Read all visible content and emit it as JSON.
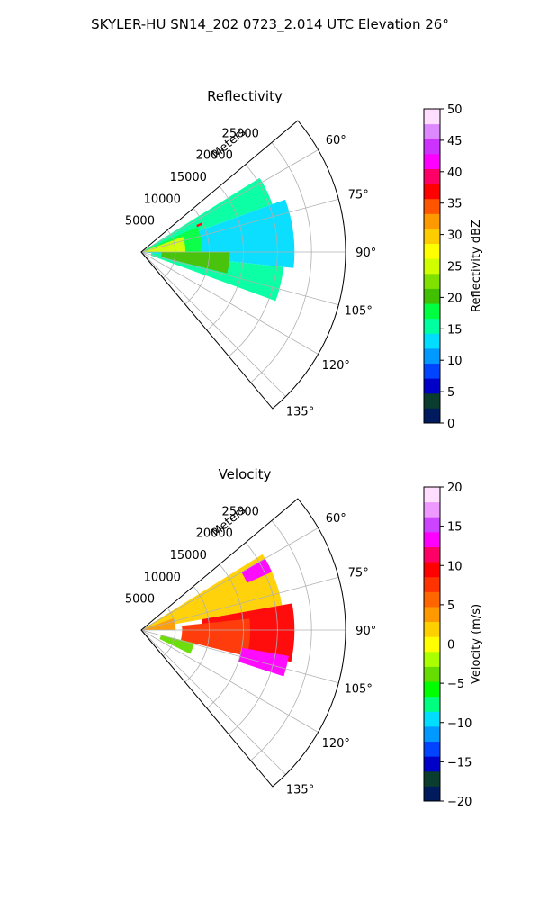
{
  "figure": {
    "title": "SKYLER-HU  SN14_202  0723_2.014 UTC Elevation 26°"
  },
  "colors": {
    "grid": "#b0b0b0",
    "axes": "#000000",
    "background": "#ffffff"
  },
  "chart_data": [
    {
      "type": "polar-sector",
      "title": "Reflectivity",
      "radial_label": "Meters",
      "radial_ticks": [
        5000,
        10000,
        15000,
        20000,
        25000
      ],
      "radial_range": [
        0,
        30000
      ],
      "angle_ticks": [
        "60°",
        "75°",
        "90°",
        "105°",
        "120°",
        "135°"
      ],
      "angle_values": [
        60,
        75,
        90,
        105,
        120,
        135
      ],
      "angle_range": [
        50,
        140
      ],
      "grid": true,
      "colorbar": {
        "label": "Reflectivity dBZ",
        "range": [
          0,
          50
        ],
        "ticks": [
          "0",
          "5",
          "10",
          "15",
          "20",
          "25",
          "30",
          "35",
          "40",
          "45",
          "50"
        ],
        "tick_values": [
          0,
          5,
          10,
          15,
          20,
          25,
          30,
          35,
          40,
          45,
          50
        ],
        "stops": [
          "#001a5e",
          "#0a3d2e",
          "#0000c8",
          "#0044ff",
          "#0099ff",
          "#00ddff",
          "#00ffa0",
          "#00ff40",
          "#40c000",
          "#80e000",
          "#d0ff00",
          "#ffff00",
          "#ffcc00",
          "#ff9900",
          "#ff5500",
          "#ff0000",
          "#ff0066",
          "#ff00ff",
          "#cc33ff",
          "#dd88ff",
          "#ffddff"
        ]
      },
      "echo_regions": [
        {
          "value": 16,
          "r": [
            0,
            20500
          ],
          "theta": [
            58,
            70
          ]
        },
        {
          "value": 14,
          "r": [
            0,
            22500
          ],
          "theta": [
            70,
            96
          ]
        },
        {
          "value": 15,
          "r": [
            1500,
            21000
          ],
          "theta": [
            96,
            110
          ]
        },
        {
          "value": 17,
          "r": [
            0,
            9000
          ],
          "theta": [
            66,
            92
          ]
        },
        {
          "value": 24,
          "r": [
            0,
            6500
          ],
          "theta": [
            70,
            90
          ]
        },
        {
          "value": 20,
          "r": [
            3000,
            13000
          ],
          "theta": [
            90,
            104
          ]
        },
        {
          "value": 37,
          "r": [
            9000,
            9800
          ],
          "theta": [
            64,
            66
          ]
        }
      ]
    },
    {
      "type": "polar-sector",
      "title": "Velocity",
      "radial_label": "Meters",
      "radial_ticks": [
        5000,
        10000,
        15000,
        20000,
        25000
      ],
      "radial_range": [
        0,
        30000
      ],
      "angle_ticks": [
        "60°",
        "75°",
        "90°",
        "105°",
        "120°",
        "135°"
      ],
      "angle_values": [
        60,
        75,
        90,
        105,
        120,
        135
      ],
      "angle_range": [
        50,
        140
      ],
      "grid": true,
      "colorbar": {
        "label": "Velocity (m/s)",
        "range": [
          -20,
          20
        ],
        "ticks": [
          "−20",
          "−15",
          "−10",
          "−5",
          "0",
          "5",
          "10",
          "15",
          "20"
        ],
        "tick_values": [
          -20,
          -15,
          -10,
          -5,
          0,
          5,
          10,
          15,
          20
        ],
        "stops": [
          "#001a5e",
          "#0a3d2e",
          "#0000c8",
          "#0044ff",
          "#0099ff",
          "#00ddff",
          "#00ff80",
          "#00ff00",
          "#66dd00",
          "#aaff00",
          "#ffff00",
          "#ffd000",
          "#ff9900",
          "#ff6600",
          "#ff3300",
          "#ff0000",
          "#ff0066",
          "#ff00ff",
          "#cc44ff",
          "#ee99ff",
          "#ffddff"
        ]
      },
      "echo_regions": [
        {
          "value": 1,
          "r": [
            0,
            21000
          ],
          "theta": [
            58,
            80
          ]
        },
        {
          "value": 9,
          "r": [
            9000,
            22500
          ],
          "theta": [
            80,
            102
          ]
        },
        {
          "value": 7,
          "r": [
            6000,
            16000
          ],
          "theta": [
            84,
            104
          ]
        },
        {
          "value": 13,
          "r": [
            17000,
            21000
          ],
          "theta": [
            60,
            66
          ]
        },
        {
          "value": 14,
          "r": [
            15000,
            22000
          ],
          "theta": [
            100,
            108
          ]
        },
        {
          "value": -3,
          "r": [
            3000,
            8000
          ],
          "theta": [
            104,
            116
          ]
        },
        {
          "value": 3,
          "r": [
            0,
            5000
          ],
          "theta": [
            70,
            90
          ]
        }
      ]
    }
  ]
}
